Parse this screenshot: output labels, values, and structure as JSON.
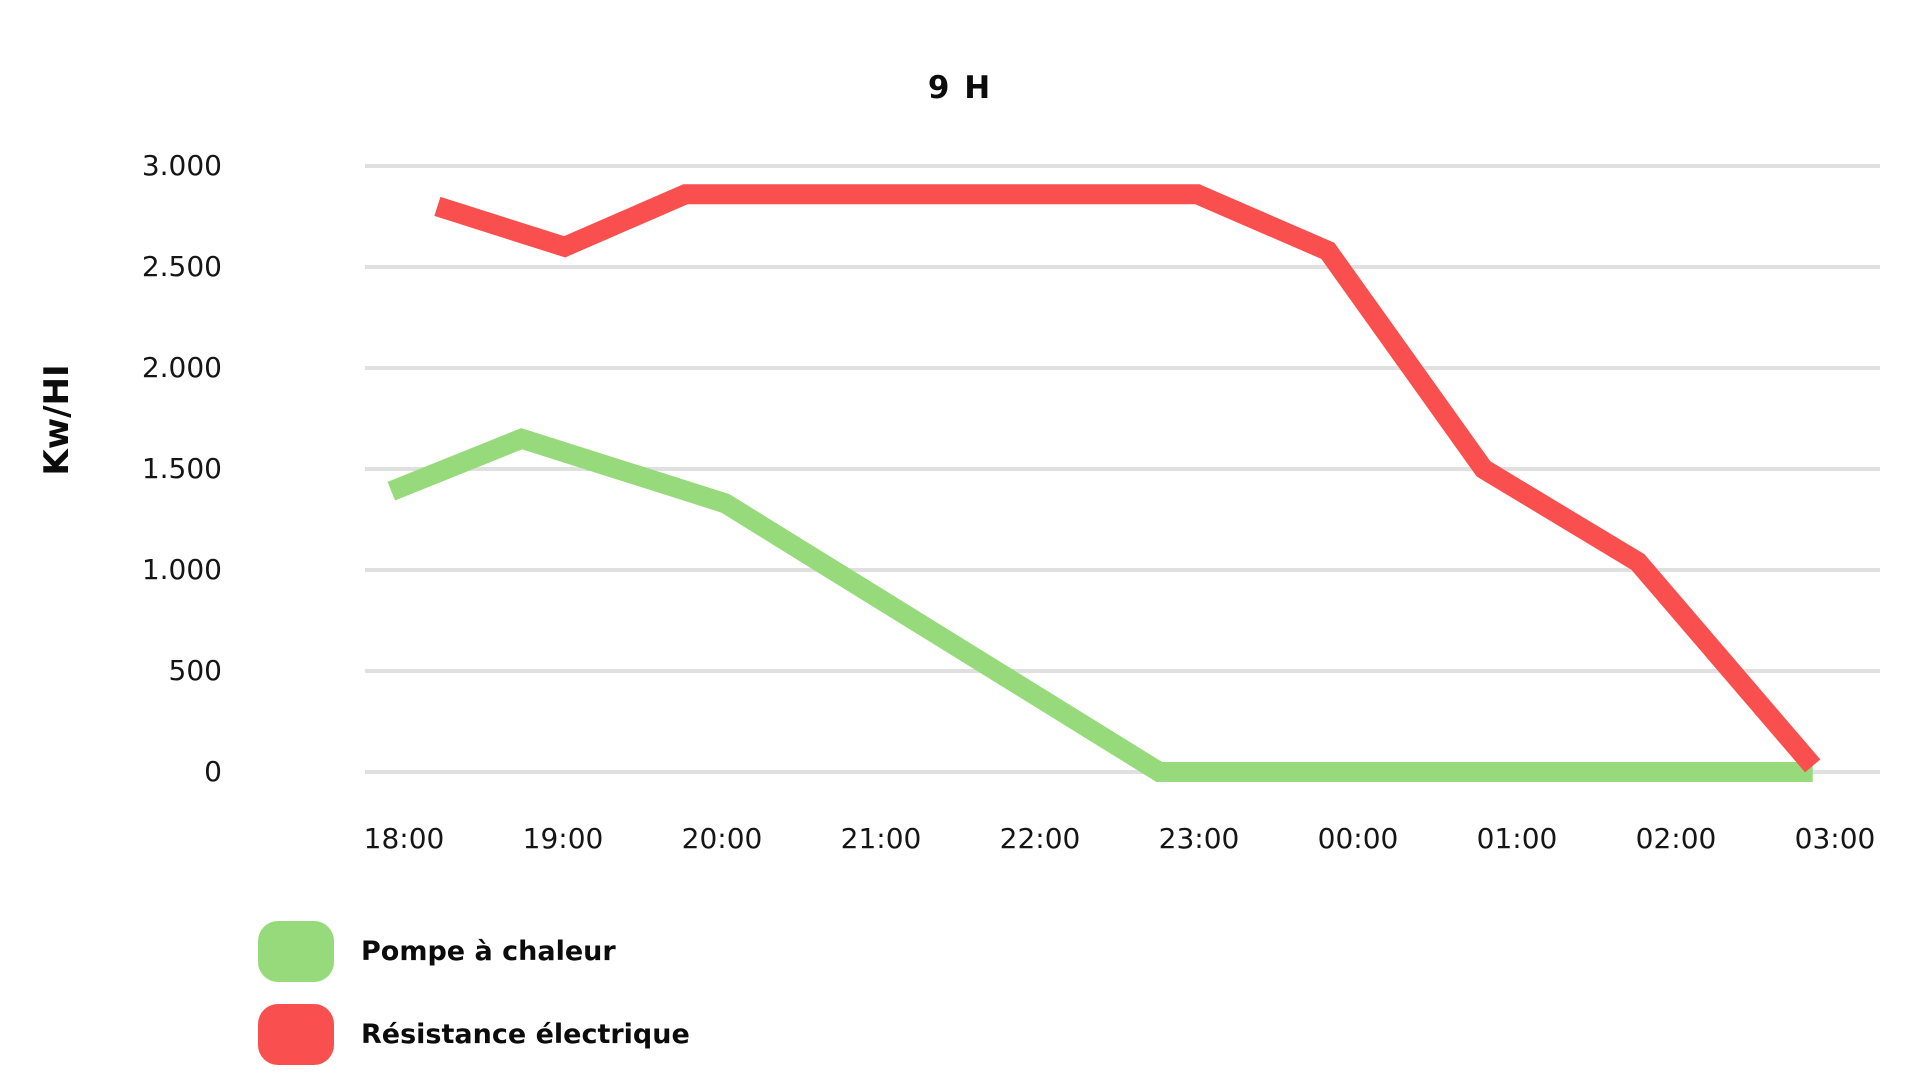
{
  "chart_data": {
    "type": "line",
    "title": "9 H",
    "xlabel": "",
    "ylabel": "Kw/HI",
    "ylim": [
      0,
      3000
    ],
    "grid": "horizontal",
    "legend_position": "bottom-left",
    "y_ticks": [
      {
        "value": 0,
        "label": "0"
      },
      {
        "value": 500,
        "label": "500"
      },
      {
        "value": 1000,
        "label": "1.000"
      },
      {
        "value": 1500,
        "label": "1.500"
      },
      {
        "value": 2000,
        "label": "2.000"
      },
      {
        "value": 2500,
        "label": "2.500"
      },
      {
        "value": 3000,
        "label": "3.000"
      }
    ],
    "x_tick_labels": [
      "18:00",
      "19:00",
      "20:00",
      "21:00",
      "22:00",
      "23:00",
      "00:00",
      "01:00",
      "02:00",
      "03:00"
    ],
    "x_unit": "hours after 18:00 (1 unit per tick)",
    "series": [
      {
        "name": "Pompe à chaleur",
        "color": "#96DA7C",
        "points": [
          [
            -0.08,
            1390
          ],
          [
            0.74,
            1650
          ],
          [
            2.02,
            1330
          ],
          [
            4.75,
            0
          ],
          [
            8.86,
            0
          ]
        ]
      },
      {
        "name": "Résistance électrique",
        "color": "#F94F4E",
        "points": [
          [
            0.21,
            2800
          ],
          [
            1.01,
            2600
          ],
          [
            1.77,
            2860
          ],
          [
            4.99,
            2860
          ],
          [
            5.81,
            2580
          ],
          [
            6.79,
            1500
          ],
          [
            7.76,
            1040
          ],
          [
            8.86,
            30
          ]
        ]
      }
    ],
    "gridline_color": "#E0E0E0",
    "text_color": "#0c0c0c"
  }
}
